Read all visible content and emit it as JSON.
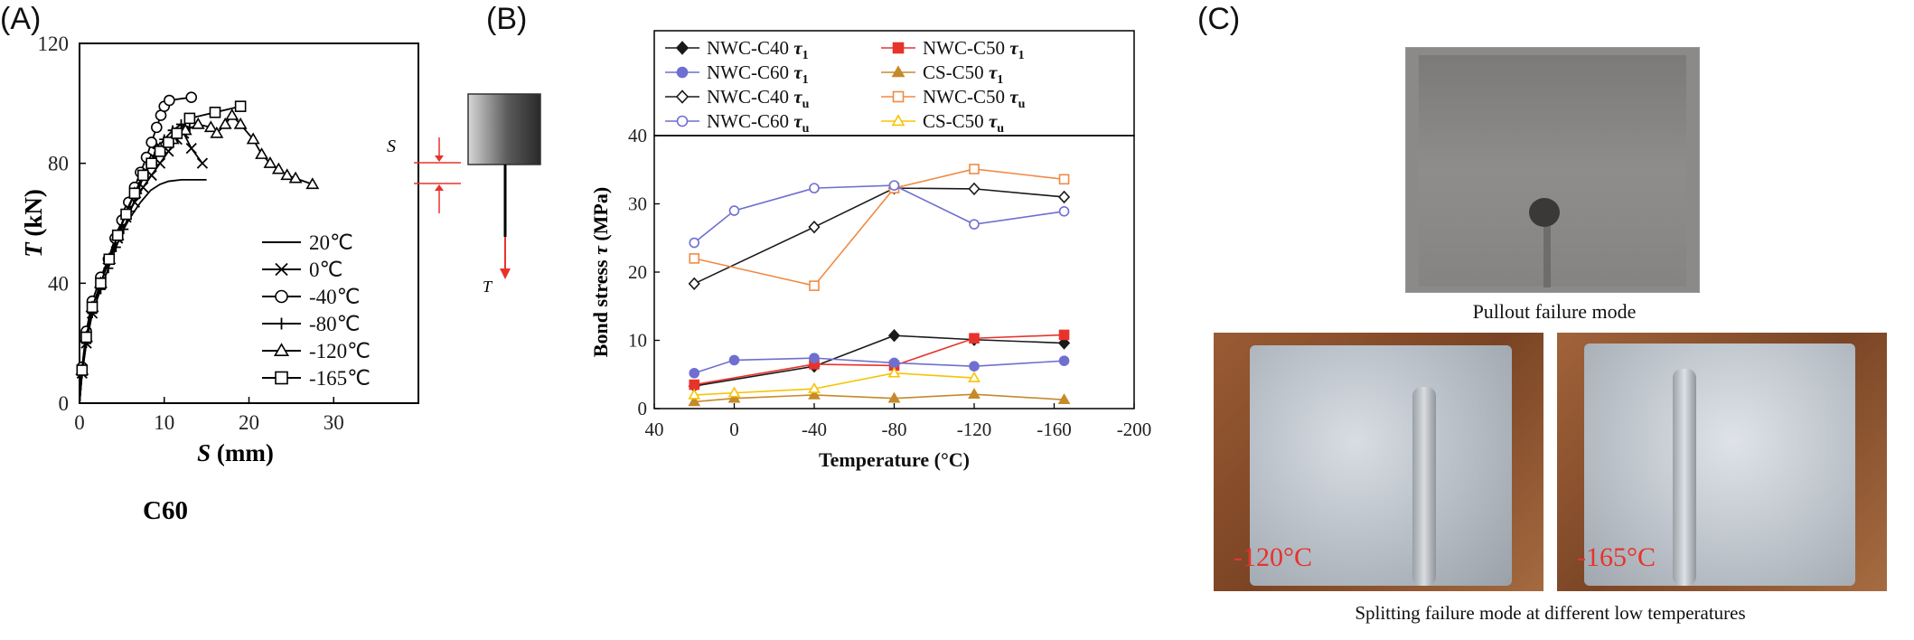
{
  "panels": {
    "a": "(A)",
    "b": "(B)",
    "c": "(C)"
  },
  "chart_data": [
    {
      "type": "line",
      "panel": "A",
      "xlabel_sym": "S",
      "xlabel_unit": " (mm)",
      "ylabel_sym": "T",
      "ylabel_unit": " (kN)",
      "xlim": [
        0,
        40
      ],
      "ylim": [
        0,
        120
      ],
      "xticks": [
        0,
        10,
        20,
        30
      ],
      "yticks": [
        0,
        40,
        80,
        120
      ],
      "annotation": "C60",
      "inset": {
        "s_label": "S",
        "t_label": "T"
      },
      "legend_position": "bottom-right",
      "series": [
        {
          "name": "20℃",
          "marker": "line",
          "points": [
            [
              0,
              0
            ],
            [
              0.3,
              10
            ],
            [
              0.8,
              20
            ],
            [
              1.5,
              30
            ],
            [
              2.5,
              40
            ],
            [
              3.5,
              48
            ],
            [
              4.8,
              56
            ],
            [
              6,
              62
            ],
            [
              7.2,
              67
            ],
            [
              8.4,
              71
            ],
            [
              9.5,
              73
            ],
            [
              10.5,
              74
            ],
            [
              12,
              74.5
            ],
            [
              13.5,
              74.5
            ],
            [
              15,
              74.5
            ]
          ]
        },
        {
          "name": "0℃",
          "marker": "x",
          "points": [
            [
              0,
              0
            ],
            [
              0.3,
              10
            ],
            [
              0.8,
              20
            ],
            [
              1.5,
              30
            ],
            [
              2.5,
              40
            ],
            [
              3.5,
              48
            ],
            [
              4.5,
              55
            ],
            [
              5.5,
              62
            ],
            [
              6.5,
              67
            ],
            [
              7.5,
              72
            ],
            [
              8.5,
              76
            ],
            [
              9.5,
              80
            ],
            [
              10.5,
              84
            ],
            [
              11.5,
              88
            ],
            [
              12.3,
              90
            ],
            [
              13.2,
              85
            ],
            [
              14.5,
              80
            ]
          ]
        },
        {
          "name": "-40℃",
          "marker": "circle",
          "points": [
            [
              0,
              0
            ],
            [
              0.3,
              12
            ],
            [
              0.8,
              24
            ],
            [
              1.5,
              34
            ],
            [
              2.5,
              42
            ],
            [
              3.4,
              48
            ],
            [
              4.2,
              55
            ],
            [
              5,
              61
            ],
            [
              5.8,
              67
            ],
            [
              6.5,
              72
            ],
            [
              7.2,
              77
            ],
            [
              7.9,
              82
            ],
            [
              8.5,
              87
            ],
            [
              9.1,
              92
            ],
            [
              9.6,
              96
            ],
            [
              10,
              99
            ],
            [
              10.6,
              101
            ],
            [
              13.2,
              102
            ]
          ]
        },
        {
          "name": "-80℃",
          "marker": "plus",
          "points": [
            [
              0,
              0
            ],
            [
              0.3,
              10
            ],
            [
              0.8,
              20
            ],
            [
              1.5,
              30
            ],
            [
              2.5,
              38
            ],
            [
              3.4,
              45
            ],
            [
              4.3,
              52
            ],
            [
              5.2,
              58
            ],
            [
              6,
              64
            ],
            [
              6.8,
              70
            ],
            [
              7.6,
              76
            ],
            [
              8.4,
              81
            ],
            [
              9.2,
              85
            ],
            [
              10,
              88
            ],
            [
              11,
              91
            ],
            [
              12,
              93
            ],
            [
              13,
              92
            ]
          ]
        },
        {
          "name": "-120℃",
          "marker": "triangle",
          "points": [
            [
              0,
              0
            ],
            [
              0.3,
              11
            ],
            [
              0.8,
              22
            ],
            [
              1.5,
              32
            ],
            [
              2.5,
              40
            ],
            [
              3.5,
              48
            ],
            [
              4.5,
              56
            ],
            [
              5.5,
              64
            ],
            [
              6.5,
              70
            ],
            [
              7.5,
              76
            ],
            [
              8.5,
              81
            ],
            [
              9.5,
              85
            ],
            [
              11,
              88
            ],
            [
              12.5,
              91
            ],
            [
              14,
              93
            ],
            [
              15.5,
              92
            ],
            [
              16.2,
              90
            ],
            [
              17.2,
              93
            ],
            [
              18,
              96
            ],
            [
              19,
              93
            ],
            [
              20.5,
              88
            ],
            [
              21.5,
              83
            ],
            [
              22.5,
              80
            ],
            [
              23.5,
              78
            ],
            [
              24.5,
              76
            ],
            [
              25.5,
              75
            ],
            [
              27.5,
              73
            ]
          ]
        },
        {
          "name": "-165℃",
          "marker": "square",
          "points": [
            [
              0,
              0
            ],
            [
              0.3,
              11
            ],
            [
              0.8,
              22
            ],
            [
              1.5,
              32
            ],
            [
              2.5,
              40
            ],
            [
              3.5,
              48
            ],
            [
              4.5,
              56
            ],
            [
              5.5,
              63
            ],
            [
              6.5,
              70
            ],
            [
              7.5,
              76
            ],
            [
              8.5,
              80
            ],
            [
              9.5,
              84
            ],
            [
              10.5,
              87
            ],
            [
              11.5,
              90
            ],
            [
              13,
              95
            ],
            [
              16,
              97
            ],
            [
              19,
              99
            ]
          ]
        }
      ]
    },
    {
      "type": "line",
      "panel": "B",
      "xlabel": "Temperature (°C)",
      "ylabel_prefix": "Bond stress ",
      "ylabel_sym": "τ",
      "ylabel_unit": " (MPa)",
      "xlim": [
        40,
        -200
      ],
      "ylim": [
        0,
        40
      ],
      "xticks": [
        40,
        0,
        -40,
        -80,
        -120,
        -160,
        -200
      ],
      "yticks": [
        0,
        10,
        20,
        30,
        40
      ],
      "legend_position": "top",
      "x": [
        20,
        0,
        -40,
        -80,
        -120,
        -165
      ],
      "series": [
        {
          "name": "NWC-C40",
          "sub": "1",
          "color": "#1a1a1a",
          "marker": "diamond",
          "filled": true,
          "x": [
            20,
            -40,
            -80,
            -120,
            -165
          ],
          "values": [
            3.3,
            6.2,
            10.7,
            10.1,
            9.6
          ]
        },
        {
          "name": "NWC-C50",
          "sub": "1",
          "color": "#e8332b",
          "marker": "square",
          "filled": true,
          "x": [
            20,
            -40,
            -80,
            -120,
            -165
          ],
          "values": [
            3.5,
            6.5,
            6.3,
            10.3,
            10.8
          ]
        },
        {
          "name": "NWC-C60",
          "sub": "1",
          "color": "#6e6fd0",
          "marker": "circle",
          "filled": true,
          "x": [
            20,
            0,
            -40,
            -80,
            -120,
            -165
          ],
          "values": [
            5.2,
            7.1,
            7.4,
            6.7,
            6.2,
            7.0
          ]
        },
        {
          "name": "CS-C50",
          "sub": "1",
          "color": "#c58a2a",
          "marker": "triangle",
          "filled": true,
          "x": [
            20,
            0,
            -40,
            -80,
            -120,
            -165
          ],
          "values": [
            1.0,
            1.5,
            2.0,
            1.5,
            2.1,
            1.3
          ]
        },
        {
          "name": "NWC-C40",
          "sub": "u",
          "color": "#1a1a1a",
          "marker": "diamond",
          "filled": false,
          "x": [
            20,
            -40,
            -80,
            -120,
            -165
          ],
          "values": [
            18.3,
            26.6,
            32.3,
            32.2,
            31.0
          ]
        },
        {
          "name": "NWC-C50",
          "sub": "u",
          "color": "#f08a45",
          "marker": "square",
          "filled": false,
          "x": [
            20,
            -40,
            -80,
            -120,
            -165
          ],
          "values": [
            22.0,
            18.0,
            32.3,
            35.1,
            33.6
          ]
        },
        {
          "name": "NWC-C60",
          "sub": "u",
          "color": "#6e6fd0",
          "marker": "circle",
          "filled": false,
          "x": [
            20,
            0,
            -40,
            -80,
            -120,
            -165
          ],
          "values": [
            24.3,
            29.0,
            32.3,
            32.7,
            27.0,
            28.9
          ]
        },
        {
          "name": "CS-C50",
          "sub": "u",
          "color": "#f5c400",
          "marker": "triangle",
          "filled": false,
          "x": [
            20,
            0,
            -40,
            -80,
            -120,
            -165
          ],
          "values": [
            2.0,
            2.3,
            2.9,
            5.2,
            4.5,
            null
          ]
        }
      ]
    }
  ],
  "photos": {
    "top_caption": "Pullout failure mode",
    "bottom_caption": "Splitting failure mode at different low temperatures",
    "left_temp": "-120°C",
    "right_temp": "-165°C"
  }
}
